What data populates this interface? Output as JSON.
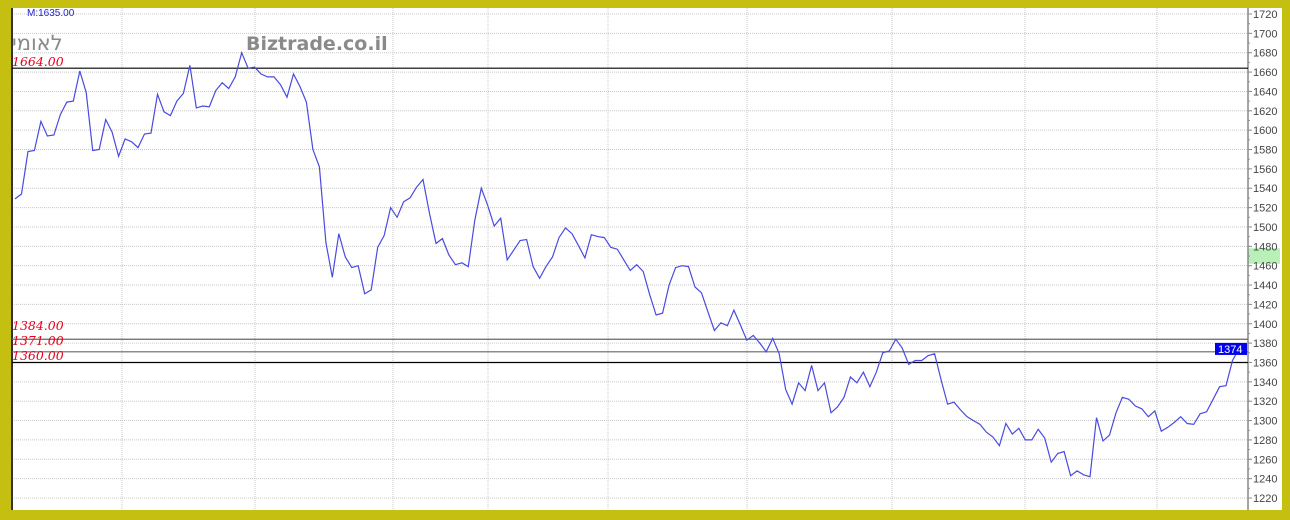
{
  "header": {
    "marker_value": "M:1635.00",
    "instrument_name": "לאומי",
    "watermark": "Biztrade.co.il"
  },
  "reference_lines": [
    {
      "label": "1664.00",
      "value": 1664,
      "color": "#000000"
    },
    {
      "label": "1384.00",
      "value": 1384,
      "color": "#666666"
    },
    {
      "label": "1371.00",
      "value": 1371,
      "color": "#666666"
    },
    {
      "label": "1360.00",
      "value": 1360,
      "color": "#000000"
    }
  ],
  "last_price": {
    "label": "1374",
    "value": 1374,
    "color": "#0000ee"
  },
  "highlight_band": {
    "from": 1462,
    "to": 1478,
    "color": "#b8f0b8"
  },
  "colors": {
    "background": "#c5bf12",
    "line": "#4a4ae0",
    "grid": "#c8c8c8",
    "ref_label": "#e8001c"
  },
  "chart_data": {
    "type": "line",
    "title": "",
    "xlabel": "",
    "ylabel": "",
    "ylim": [
      1220,
      1720
    ],
    "y_axis_position": "right",
    "y_ticks": [
      1720,
      1700,
      1680,
      1660,
      1640,
      1620,
      1600,
      1580,
      1560,
      1540,
      1520,
      1500,
      1480,
      1460,
      1440,
      1420,
      1400,
      1380,
      1360,
      1340,
      1320,
      1300,
      1280,
      1260,
      1240,
      1220
    ],
    "grid": true,
    "legend": "none",
    "series": [
      {
        "values": [
          1529,
          1534,
          1578,
          1579,
          1609,
          1594,
          1595,
          1616,
          1629,
          1630,
          1661,
          1639,
          1579,
          1580,
          1611,
          1598,
          1573,
          1591,
          1588,
          1582,
          1596,
          1597,
          1637,
          1619,
          1615,
          1630,
          1638,
          1667,
          1623,
          1625,
          1624,
          1641,
          1649,
          1643,
          1655,
          1680,
          1664,
          1665,
          1658,
          1655,
          1655,
          1647,
          1634,
          1658,
          1645,
          1629,
          1580,
          1562,
          1484,
          1448,
          1493,
          1469,
          1458,
          1460,
          1431,
          1435,
          1479,
          1491,
          1520,
          1510,
          1526,
          1530,
          1541,
          1549,
          1514,
          1483,
          1488,
          1471,
          1461,
          1463,
          1459,
          1507,
          1540,
          1522,
          1501,
          1509,
          1466,
          1476,
          1486,
          1487,
          1459,
          1447,
          1459,
          1469,
          1489,
          1499,
          1493,
          1481,
          1468,
          1492,
          1490,
          1489,
          1479,
          1477,
          1466,
          1455,
          1461,
          1454,
          1430,
          1409,
          1411,
          1440,
          1458,
          1460,
          1459,
          1438,
          1432,
          1412,
          1393,
          1401,
          1398,
          1414,
          1399,
          1383,
          1388,
          1380,
          1371,
          1385,
          1369,
          1332,
          1317,
          1339,
          1331,
          1357,
          1331,
          1339,
          1308,
          1314,
          1324,
          1345,
          1339,
          1350,
          1335,
          1350,
          1370,
          1372,
          1384,
          1375,
          1358,
          1362,
          1362,
          1367,
          1369,
          1342,
          1317,
          1319,
          1311,
          1304,
          1300,
          1296,
          1288,
          1283,
          1274,
          1297,
          1286,
          1292,
          1280,
          1280,
          1291,
          1282,
          1257,
          1266,
          1268,
          1243,
          1248,
          1244,
          1242,
          1303,
          1279,
          1285,
          1308,
          1324,
          1322,
          1315,
          1312,
          1304,
          1310,
          1289,
          1293,
          1298,
          1304,
          1297,
          1296,
          1307,
          1309,
          1322,
          1335,
          1336,
          1362,
          1374
        ]
      }
    ]
  }
}
